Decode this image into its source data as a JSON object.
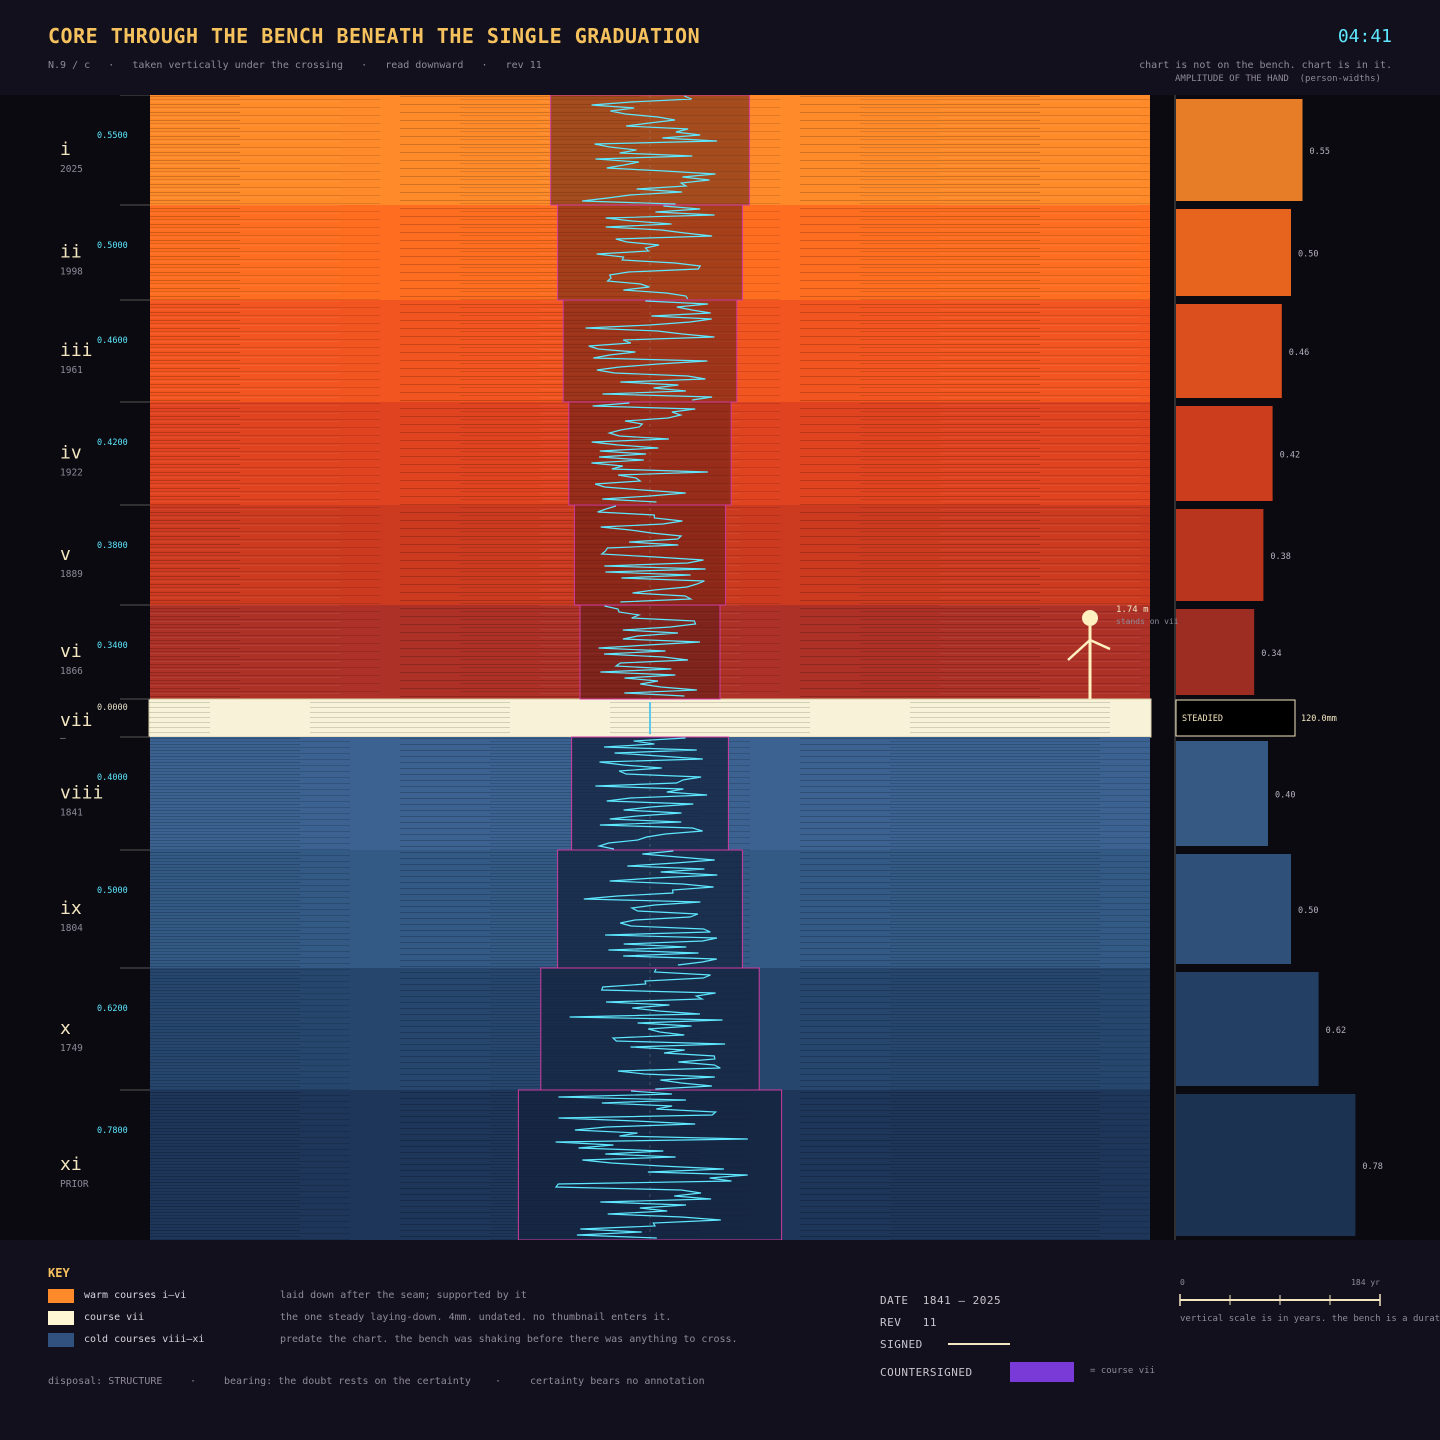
{
  "header": {
    "title": "CORE THROUGH THE BENCH BENEATH THE SINGLE GRADUATION",
    "clock": "04:41",
    "meta": [
      "N.9 / c",
      "taken vertically under the crossing",
      "read downward",
      "rev 11"
    ],
    "note_right": "chart is not on the bench. chart is in it.",
    "amplitude_title": "AMPLITUDE OF THE HAND  (person-widths)"
  },
  "figure": {
    "label_height": "1.74 m",
    "label_stand": "stands on vii",
    "steadied_label": "STEADIED",
    "steadied_value": "120.0mm"
  },
  "courses": [
    {
      "id": "i",
      "year": "2025",
      "value": "0.5500",
      "amp": 0.55,
      "amp_label": "0.55",
      "kind": "warm",
      "color": "#ff8a2a"
    },
    {
      "id": "ii",
      "year": "1998",
      "value": "0.5000",
      "amp": 0.5,
      "amp_label": "0.50",
      "kind": "warm",
      "color": "#ff6e20"
    },
    {
      "id": "iii",
      "year": "1961",
      "value": "0.4600",
      "amp": 0.46,
      "amp_label": "0.46",
      "kind": "warm",
      "color": "#f25520"
    },
    {
      "id": "iv",
      "year": "1922",
      "value": "0.4200",
      "amp": 0.42,
      "amp_label": "0.42",
      "kind": "warm",
      "color": "#e0431f"
    },
    {
      "id": "v",
      "year": "1889",
      "value": "0.3800",
      "amp": 0.38,
      "amp_label": "0.38",
      "kind": "warm",
      "color": "#cc3a20"
    },
    {
      "id": "vi",
      "year": "1866",
      "value": "0.3400",
      "amp": 0.34,
      "amp_label": "0.34",
      "kind": "warm",
      "color": "#ad3126"
    },
    {
      "id": "vii",
      "year": "—",
      "value": "0.0000",
      "amp": 0.0,
      "amp_label": "",
      "kind": "steady",
      "color": "#f8f2d8"
    },
    {
      "id": "viii",
      "year": "1841",
      "value": "0.4000",
      "amp": 0.4,
      "amp_label": "0.40",
      "kind": "cold",
      "color": "#3b6290"
    },
    {
      "id": "ix",
      "year": "1804",
      "value": "0.5000",
      "amp": 0.5,
      "amp_label": "0.50",
      "kind": "cold",
      "color": "#335985"
    },
    {
      "id": "x",
      "year": "1749",
      "value": "0.6200",
      "amp": 0.62,
      "amp_label": "0.62",
      "kind": "cold",
      "color": "#26466e"
    },
    {
      "id": "xi",
      "year": "PRIOR",
      "value": "0.7800",
      "amp": 0.78,
      "amp_label": "0.78",
      "kind": "cold",
      "color": "#1d3659"
    }
  ],
  "key": {
    "title": "KEY",
    "items": [
      {
        "label": "warm courses i–vi",
        "desc": "laid down after the seam; supported by it",
        "color": "#ff8a2a"
      },
      {
        "label": "course vii",
        "desc": "the one steady laying-down. 4mm. undated. no thumbnail enters it.",
        "color": "#fff6d4"
      },
      {
        "label": "cold courses viii–xi",
        "desc": "predate the chart. the bench was shaking before there was anything to cross.",
        "color": "#31527e"
      }
    ]
  },
  "disposal": [
    "disposal: STRUCTURE",
    "·",
    "bearing: the doubt rests on the certainty",
    "·",
    "certainty bears no annotation"
  ],
  "meta": {
    "date": "DATE  1841 – 2025",
    "rev": "REV   11",
    "signed": "SIGNED",
    "countersigned": "COUNTERSIGNED",
    "countersigned_note": "= course vii"
  },
  "scale": {
    "start": "0",
    "end": "184 yr",
    "note": "vertical scale is in years. the bench is a duration"
  }
}
